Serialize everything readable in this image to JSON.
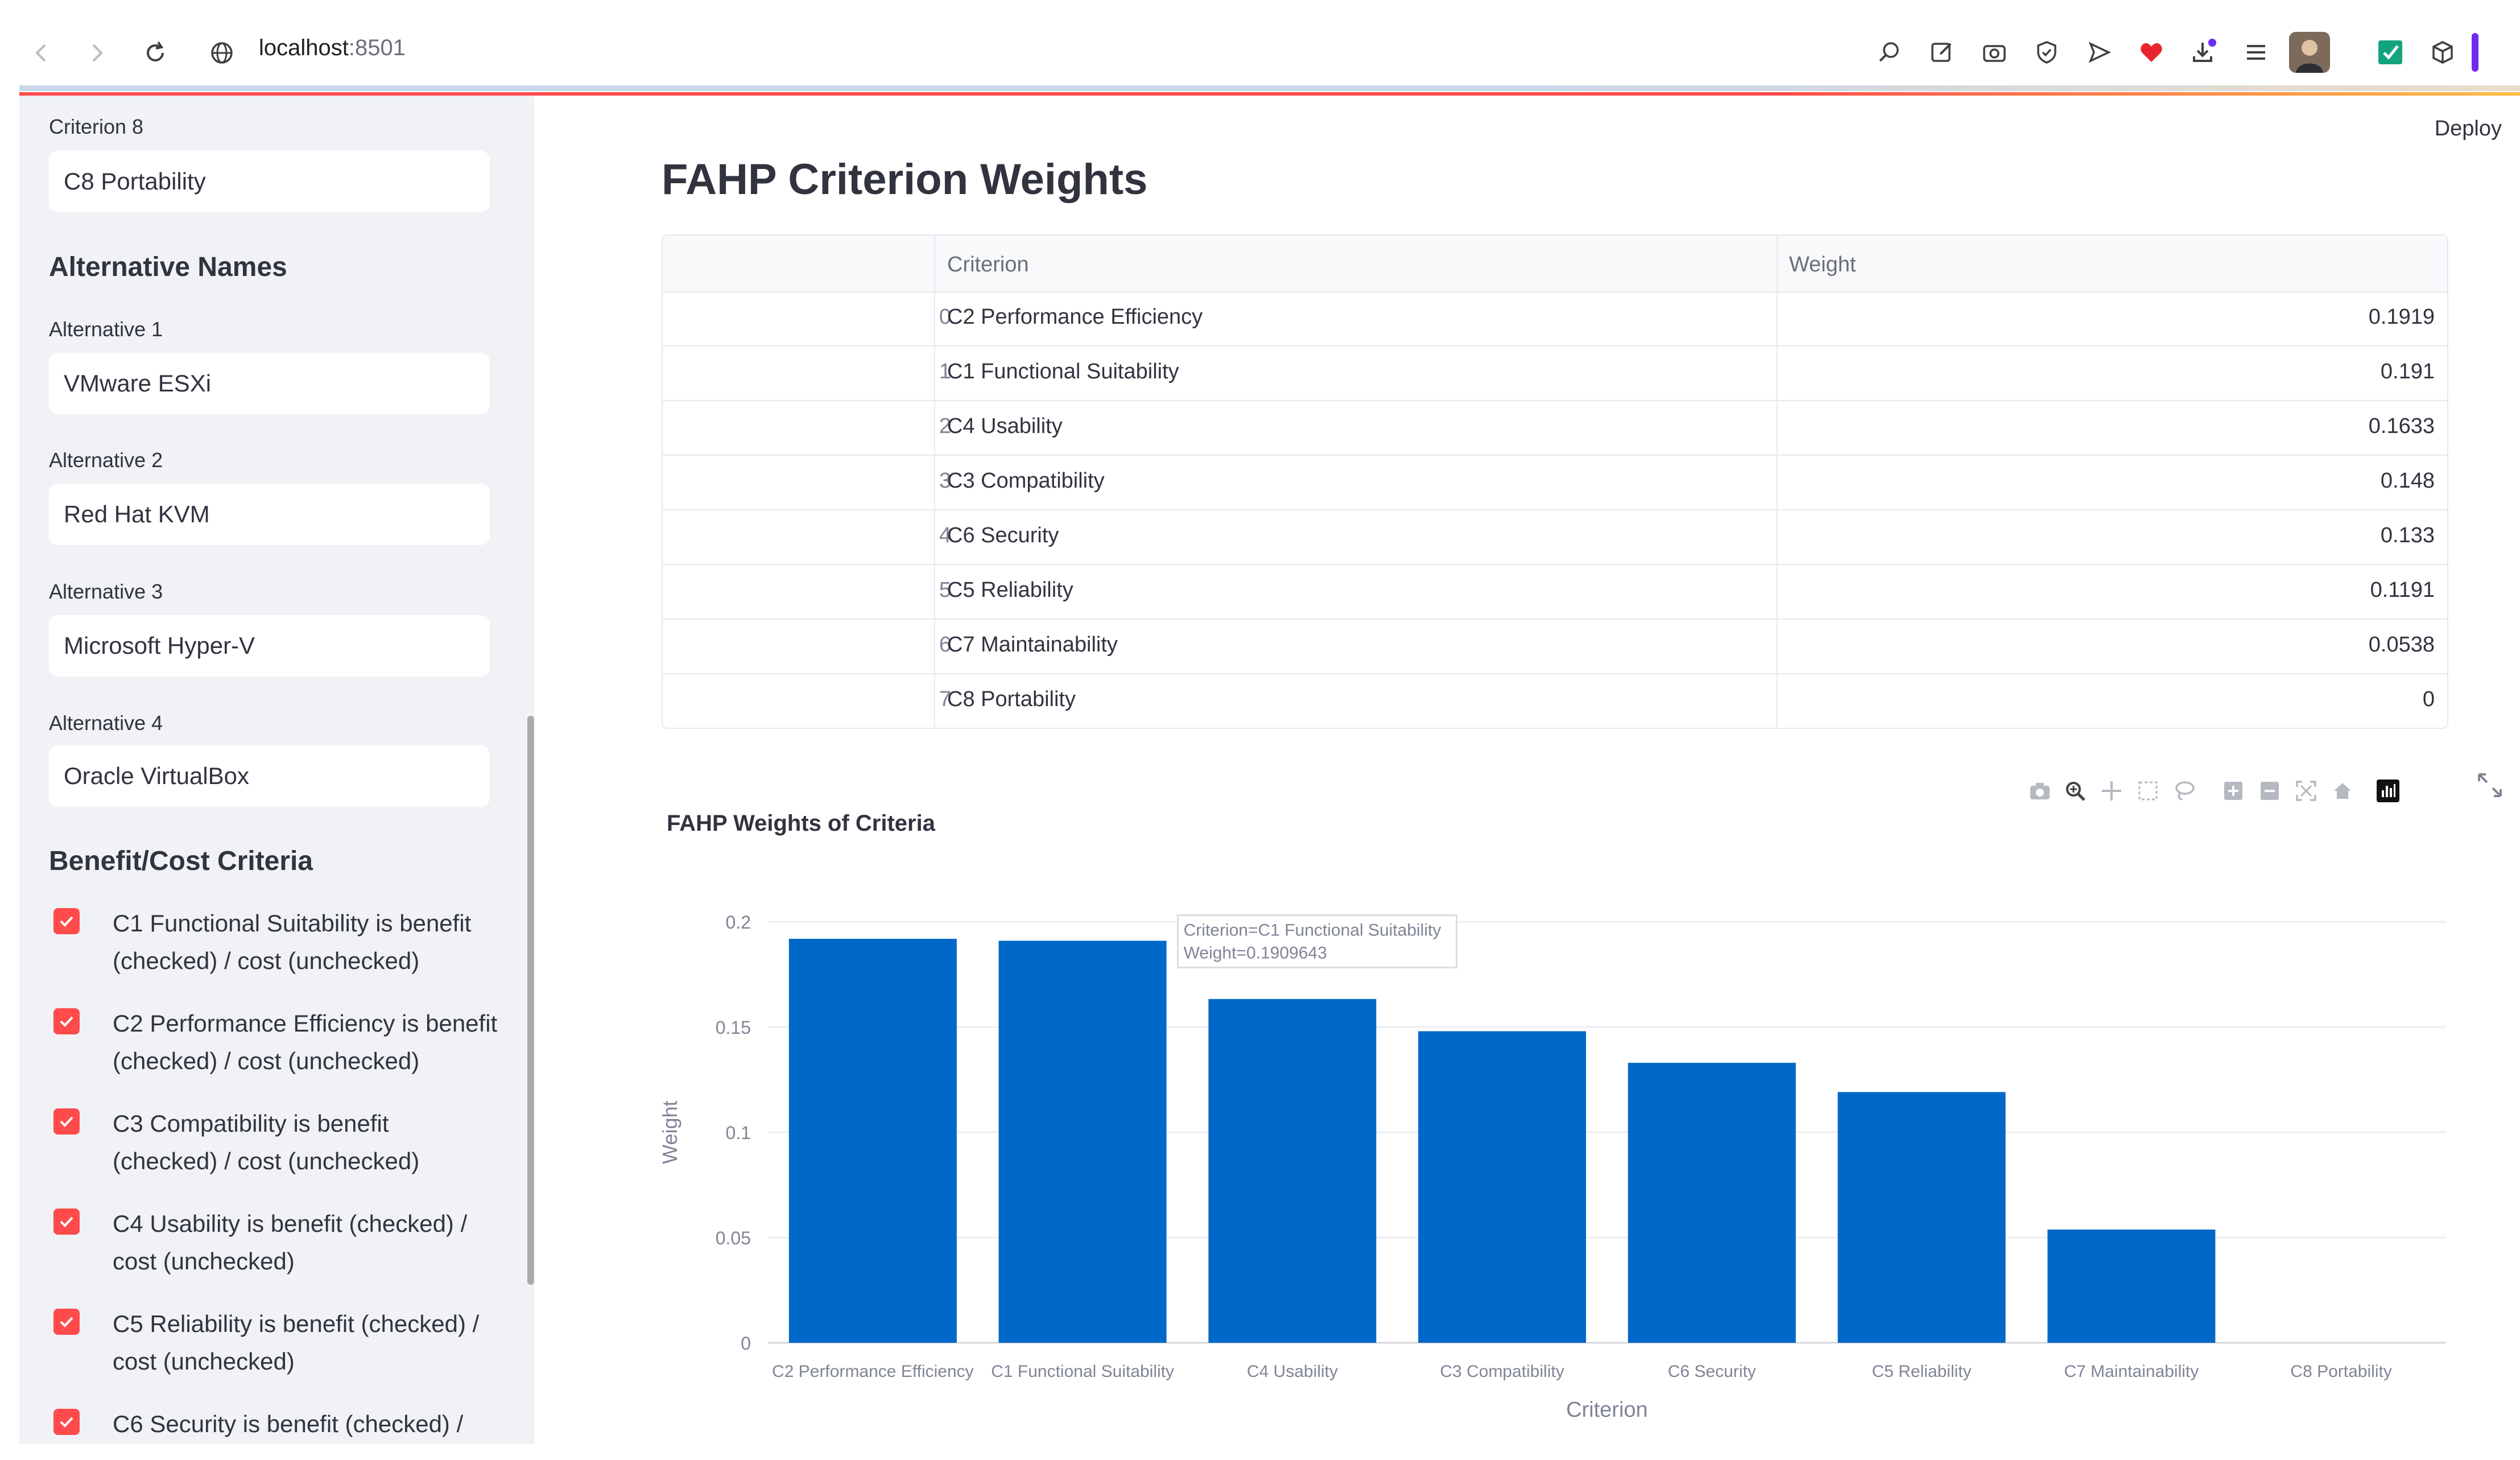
{
  "browser": {
    "url_host": "localhost",
    "url_port": ":8501",
    "toolbar_icons": [
      "search-icon",
      "edit-icon",
      "camera-icon",
      "shield-icon",
      "send-icon",
      "heart-icon",
      "download-icon",
      "menu-lines-icon",
      "profile-avatar",
      "check-extension-icon",
      "cube-extension-icon"
    ]
  },
  "app": {
    "deploy_label": "Deploy"
  },
  "sidebar": {
    "criterion8": {
      "label": "Criterion 8",
      "value": "C8 Portability"
    },
    "alternatives_heading": "Alternative Names",
    "alternatives": [
      {
        "label": "Alternative 1",
        "value": "VMware ESXi"
      },
      {
        "label": "Alternative 2",
        "value": "Red Hat KVM"
      },
      {
        "label": "Alternative 3",
        "value": "Microsoft Hyper-V"
      },
      {
        "label": "Alternative 4",
        "value": "Oracle VirtualBox"
      }
    ],
    "benefit_heading": "Benefit/Cost Criteria",
    "checkboxes": [
      {
        "text": "C1 Functional Suitability is benefit (checked) / cost (unchecked)",
        "checked": true
      },
      {
        "text": "C2 Performance Efficiency is benefit (checked) / cost (unchecked)",
        "checked": true
      },
      {
        "text": "C3 Compatibility is benefit (checked) / cost (unchecked)",
        "checked": true
      },
      {
        "text": "C4 Usability is benefit (checked) / cost (unchecked)",
        "checked": true
      },
      {
        "text": "C5 Reliability is benefit (checked) / cost (unchecked)",
        "checked": true
      },
      {
        "text": "C6 Security is benefit (checked) /",
        "checked": true
      }
    ]
  },
  "main": {
    "title": "FAHP Criterion Weights",
    "table": {
      "columns": [
        "",
        "Criterion",
        "Weight"
      ],
      "rows": [
        {
          "index": "0",
          "criterion": "C2 Performance Efficiency",
          "weight": "0.1919"
        },
        {
          "index": "1",
          "criterion": "C1 Functional Suitability",
          "weight": "0.191"
        },
        {
          "index": "2",
          "criterion": "C4 Usability",
          "weight": "0.1633"
        },
        {
          "index": "3",
          "criterion": "C3 Compatibility",
          "weight": "0.148"
        },
        {
          "index": "4",
          "criterion": "C6 Security",
          "weight": "0.133"
        },
        {
          "index": "5",
          "criterion": "C5 Reliability",
          "weight": "0.1191"
        },
        {
          "index": "6",
          "criterion": "C7 Maintainability",
          "weight": "0.0538"
        },
        {
          "index": "7",
          "criterion": "C8 Portability",
          "weight": "0"
        }
      ]
    }
  },
  "chart_data": {
    "type": "bar",
    "title": "FAHP Weights of Criteria",
    "xlabel": "Criterion",
    "ylabel": "Weight",
    "categories": [
      "C2 Performance Efficiency",
      "C1 Functional Suitability",
      "C4 Usability",
      "C3 Compatibility",
      "C6 Security",
      "C5 Reliability",
      "C7 Maintainability",
      "C8 Portability"
    ],
    "values": [
      0.1919,
      0.1909643,
      0.1633,
      0.148,
      0.133,
      0.1191,
      0.0538,
      0
    ],
    "ylim": [
      0,
      0.2
    ],
    "yticks": [
      "0",
      "0.05",
      "0.1",
      "0.15",
      "0.2"
    ],
    "bar_color": "#0068c9",
    "grid": true,
    "tooltip": {
      "line1": "Criterion=C1 Functional Suitability",
      "line2": "Weight=0.1909643"
    }
  },
  "modebar_icons": [
    "camera-icon",
    "zoom-icon",
    "pan-icon",
    "box-select-icon",
    "lasso-icon",
    "zoom-in-icon",
    "zoom-out-icon",
    "autoscale-icon",
    "home-icon",
    "plotly-logo-icon"
  ]
}
